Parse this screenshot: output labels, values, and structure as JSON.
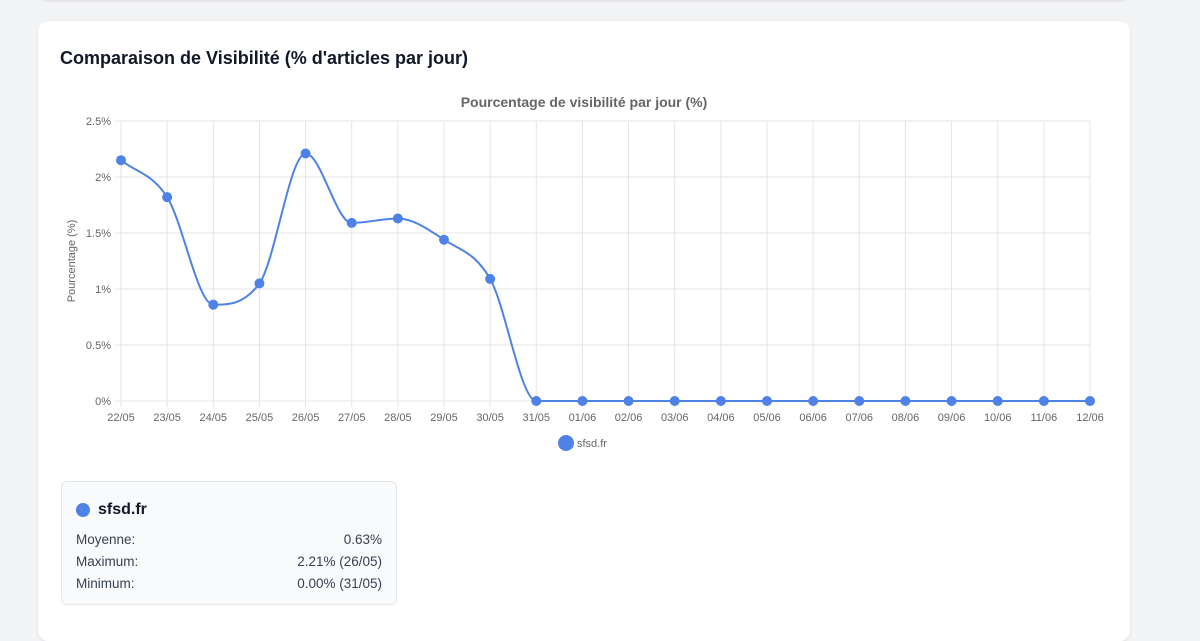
{
  "card": {
    "title": "Comparaison de Visibilité (% d'articles par jour)"
  },
  "chart_data": {
    "type": "line",
    "title": "Pourcentage de visibilité par jour (%)",
    "ylabel": "Pourcentage (%)",
    "xlabel": "",
    "categories": [
      "22/05",
      "23/05",
      "24/05",
      "25/05",
      "26/05",
      "27/05",
      "28/05",
      "29/05",
      "30/05",
      "31/05",
      "01/06",
      "02/06",
      "03/06",
      "04/06",
      "05/06",
      "06/06",
      "07/06",
      "08/06",
      "09/06",
      "10/06",
      "11/06",
      "12/06"
    ],
    "ylim": [
      0,
      2.5
    ],
    "yticks": [
      "0%",
      "0.5%",
      "1%",
      "1.5%",
      "2%",
      "2.5%"
    ],
    "grid": true,
    "legend_position": "bottom",
    "series": [
      {
        "name": "sfsd.fr",
        "color": "#4f82e6",
        "values": [
          2.15,
          1.82,
          0.86,
          1.05,
          2.21,
          1.59,
          1.63,
          1.44,
          1.09,
          0,
          0,
          0,
          0,
          0,
          0,
          0,
          0,
          0,
          0,
          0,
          0,
          0
        ]
      }
    ]
  },
  "stats": {
    "name": "sfsd.fr",
    "color": "#4f82e6",
    "rows": [
      {
        "label": "Moyenne:",
        "value": "0.63%"
      },
      {
        "label": "Maximum:",
        "value": "2.21% (26/05)"
      },
      {
        "label": "Minimum:",
        "value": "0.00% (31/05)"
      }
    ]
  }
}
